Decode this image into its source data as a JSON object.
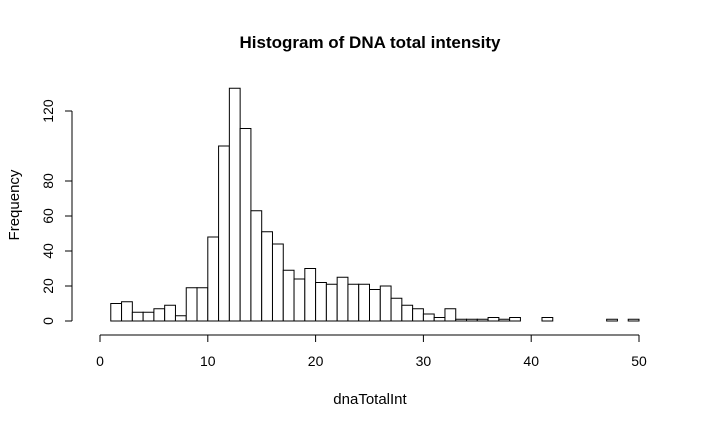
{
  "chart_data": {
    "type": "bar",
    "subtype": "histogram",
    "title": "Histogram of DNA total intensity",
    "xlabel": "dnaTotalInt",
    "ylabel": "Frequency",
    "xlim": [
      0,
      50
    ],
    "ylim": [
      0,
      132
    ],
    "grid": false,
    "legend": "none",
    "bin_width": 1,
    "bin_start": 1,
    "values": [
      10,
      11,
      5,
      5,
      7,
      9,
      3,
      19,
      19,
      48,
      100,
      133,
      110,
      63,
      51,
      44,
      29,
      24,
      30,
      22,
      21,
      25,
      21,
      21,
      18,
      20,
      13,
      9,
      7,
      4,
      2,
      7,
      1,
      1,
      1,
      2,
      1,
      2,
      0,
      0,
      2,
      0,
      0,
      0,
      0,
      0,
      1,
      0,
      1
    ],
    "x_ticks": [
      0,
      10,
      20,
      30,
      40,
      50
    ],
    "y_ticks": [
      0,
      20,
      40,
      60,
      80,
      120
    ]
  },
  "colors": {
    "bar_fill": "#ffffff",
    "bar_stroke": "#000000"
  }
}
